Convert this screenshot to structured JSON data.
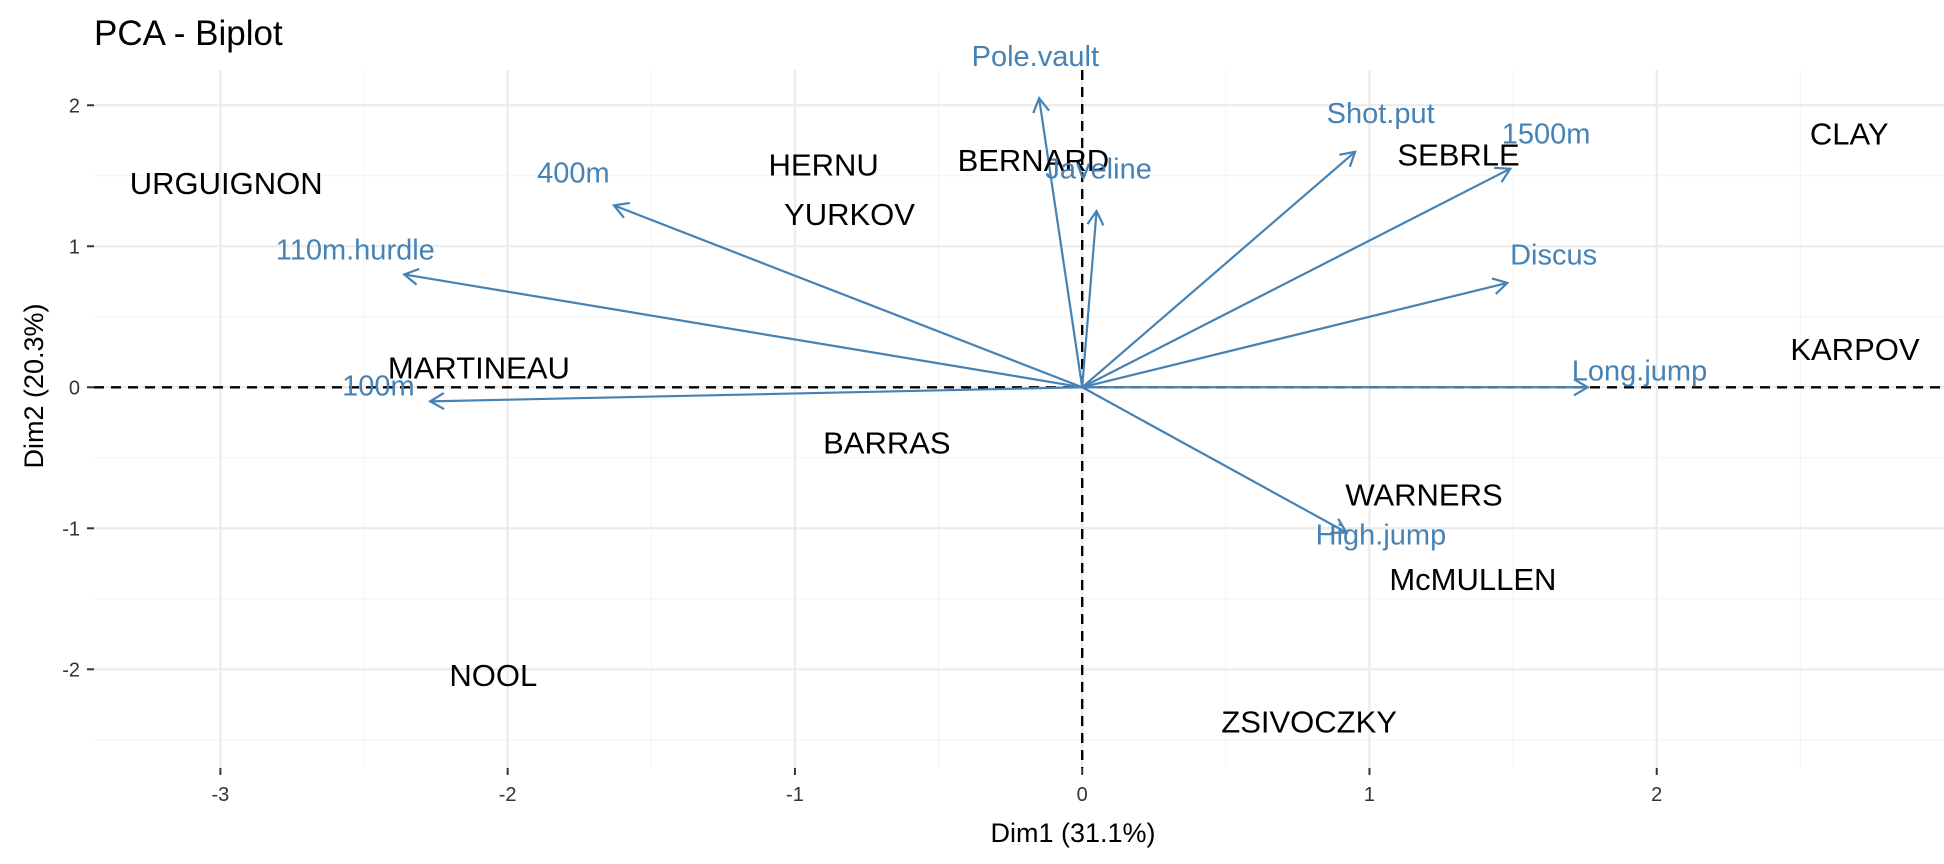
{
  "chart_data": {
    "type": "scatter",
    "title": "PCA - Biplot",
    "xlabel": "Dim1 (31.1%)",
    "ylabel": "Dim2 (20.3%)",
    "xlim": [
      -3.44,
      3.0
    ],
    "ylim": [
      -2.7,
      2.25
    ],
    "x_ticks": [
      -3,
      -2,
      -1,
      0,
      1,
      2
    ],
    "y_ticks": [
      -2,
      -1,
      0,
      1,
      2
    ],
    "x_tick_labels": [
      "-3",
      "-2",
      "-1",
      "0",
      "1",
      "2"
    ],
    "y_tick_labels": [
      "-2",
      "-1",
      "0",
      "1",
      "2"
    ],
    "grid": true,
    "reference_lines": {
      "x": 0,
      "y": 0,
      "style": "dashed"
    },
    "individuals": [
      {
        "label": "URGUIGNON",
        "x": -2.98,
        "y": 1.45
      },
      {
        "label": "HERNU",
        "x": -0.9,
        "y": 1.58
      },
      {
        "label": "BERNARD",
        "x": -0.17,
        "y": 1.61
      },
      {
        "label": "YURKOV",
        "x": -0.81,
        "y": 1.23
      },
      {
        "label": "SEBRLE",
        "x": 1.31,
        "y": 1.65
      },
      {
        "label": "CLAY",
        "x": 2.67,
        "y": 1.8
      },
      {
        "label": "KARPOV",
        "x": 2.69,
        "y": 0.27
      },
      {
        "label": "MARTINEAU",
        "x": -2.1,
        "y": 0.14
      },
      {
        "label": "BARRAS",
        "x": -0.68,
        "y": -0.39
      },
      {
        "label": "WARNERS",
        "x": 1.19,
        "y": -0.76
      },
      {
        "label": "McMULLEN",
        "x": 1.36,
        "y": -1.36
      },
      {
        "label": "NOOL",
        "x": -2.05,
        "y": -2.04
      },
      {
        "label": "ZSIVOCZKY",
        "x": 0.79,
        "y": -2.37
      }
    ],
    "variables": [
      {
        "label": "Pole.vault",
        "x": -0.15,
        "y": 2.05
      },
      {
        "label": "400m",
        "x": -1.63,
        "y": 1.29
      },
      {
        "label": "110m.hurdle",
        "x": -2.36,
        "y": 0.8
      },
      {
        "label": "100m",
        "x": -2.27,
        "y": -0.1
      },
      {
        "label": "Javeline",
        "x": 0.05,
        "y": 1.25
      },
      {
        "label": "Shot.put",
        "x": 0.95,
        "y": 1.67
      },
      {
        "label": "1500m",
        "x": 1.49,
        "y": 1.55
      },
      {
        "label": "Discus",
        "x": 1.48,
        "y": 0.74
      },
      {
        "label": "Long.jump",
        "x": 1.76,
        "y": 0.0
      },
      {
        "label": "High.jump",
        "x": 0.92,
        "y": -1.03
      }
    ],
    "colors": {
      "individuals": "#000000",
      "variables": "#4682b4"
    }
  }
}
